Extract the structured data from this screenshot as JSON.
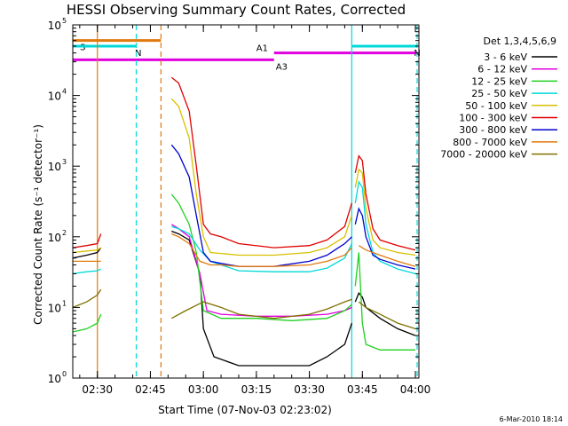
{
  "chart_data": {
    "type": "line",
    "title": "HESSI Observing Summary Count Rates, Corrected",
    "xlabel": "Start Time (07-Nov-03 02:23:02)",
    "ylabel": "Corrected Count Rate (s⁻¹ detector⁻¹)",
    "y_scale": "log",
    "ylim": [
      1,
      100000
    ],
    "xlim": [
      "02:23:02",
      "04:01:00"
    ],
    "x_tick_labels": [
      "02:30",
      "02:45",
      "03:00",
      "03:15",
      "03:30",
      "03:45",
      "04:00"
    ],
    "x_ticks": [
      "02:30",
      "02:45",
      "03:00",
      "03:15",
      "03:30",
      "03:45",
      "04:00"
    ],
    "y_ticks": [
      1,
      10,
      100,
      1000,
      10000,
      100000
    ],
    "y_tick_labels": [
      "10",
      "10",
      "10",
      "10",
      "10",
      "10"
    ],
    "y_tick_exponents": [
      "0",
      "1",
      "2",
      "3",
      "4",
      "5"
    ],
    "legend_title": "Det 1,3,4,5,6,9",
    "legend_placement": "right",
    "timestamp": "6-Mar-2010 18:14",
    "flags": [
      {
        "label": "S",
        "start": "02:23:02",
        "end": "02:48:00",
        "level": 60000,
        "color": "#e07a0e"
      },
      {
        "label": "N",
        "start": "02:23:02",
        "end": "02:41:00",
        "level": 50000,
        "color": "#00d8d8"
      },
      {
        "label": "N",
        "start": "03:42:00",
        "end": "04:00:30",
        "level": 50000,
        "color": "#00d8d8"
      },
      {
        "label": "A1",
        "start": "03:20:00",
        "end": "04:00:30",
        "level": 40000,
        "color": "#e000e0"
      },
      {
        "label": "A3",
        "start": "02:23:02",
        "end": "03:20:00",
        "level": 32000,
        "color": "#e000e0"
      }
    ],
    "vlines": [
      {
        "t": "02:30:00",
        "color": "#e07a0e",
        "style": "solid"
      },
      {
        "t": "02:41:00",
        "color": "#00d8d8",
        "style": "dashed"
      },
      {
        "t": "02:48:00",
        "color": "#e07a0e",
        "style": "dashed"
      },
      {
        "t": "03:42:00",
        "color": "#00d8d8",
        "style": "solid"
      },
      {
        "t": "04:00:30",
        "color": "#00d8d8",
        "style": "dashed"
      }
    ],
    "segments": [
      [
        "02:23:02",
        "02:31:00"
      ],
      [
        "02:51:00",
        "03:41:30"
      ],
      [
        "03:42:30",
        "04:00:30"
      ]
    ],
    "series": [
      {
        "name": "3 - 6 keV",
        "color": "#000000",
        "x": [
          "02:23",
          "02:27",
          "02:30",
          "02:31",
          "02:51",
          "02:53",
          "02:56",
          "02:59",
          "03:00",
          "03:03",
          "03:10",
          "03:20",
          "03:30",
          "03:35",
          "03:40",
          "03:42",
          "03:43",
          "03:44",
          "03:45",
          "03:46",
          "03:50",
          "03:55",
          "04:00"
        ],
        "y": [
          50,
          55,
          60,
          70,
          120,
          110,
          90,
          30,
          5,
          2,
          1.5,
          1.5,
          1.5,
          2,
          3,
          6,
          12,
          16,
          14,
          10,
          7,
          5,
          4
        ]
      },
      {
        "name": "6 - 12 keV",
        "color": "#e000e0",
        "x": [
          "02:51",
          "02:53",
          "02:56",
          "02:59",
          "03:01",
          "03:05",
          "03:15",
          "03:25",
          "03:35",
          "03:40",
          "03:42"
        ],
        "y": [
          150,
          130,
          100,
          30,
          9,
          8,
          7.5,
          7.5,
          8,
          9,
          10
        ]
      },
      {
        "name": "12 - 25 keV",
        "color": "#20d020",
        "x": [
          "02:23",
          "02:27",
          "02:30",
          "02:31",
          "02:51",
          "02:53",
          "02:56",
          "02:58",
          "03:00",
          "03:05",
          "03:15",
          "03:25",
          "03:35",
          "03:40",
          "03:42",
          "03:43",
          "03:44",
          "03:45",
          "03:46",
          "03:50",
          "03:55",
          "04:00"
        ],
        "y": [
          4.5,
          5,
          6,
          8,
          400,
          300,
          150,
          60,
          9,
          7,
          7,
          6.5,
          7,
          9,
          11,
          20,
          60,
          6,
          3,
          2.5,
          2.5,
          2.5
        ]
      },
      {
        "name": "25 - 50 keV",
        "color": "#00d8d8",
        "x": [
          "02:23",
          "02:27",
          "02:30",
          "02:31",
          "02:51",
          "02:53",
          "02:56",
          "02:59",
          "03:02",
          "03:05",
          "03:10",
          "03:20",
          "03:30",
          "03:35",
          "03:40",
          "03:42",
          "03:43",
          "03:44",
          "03:45",
          "03:46",
          "03:48",
          "03:50",
          "03:55",
          "04:00"
        ],
        "y": [
          30,
          32,
          33,
          35,
          140,
          130,
          110,
          65,
          45,
          40,
          33,
          32,
          32,
          36,
          50,
          80,
          300,
          600,
          500,
          150,
          60,
          45,
          35,
          30
        ]
      },
      {
        "name": "50 - 100 keV",
        "color": "#d8c000",
        "x": [
          "02:23",
          "02:27",
          "02:30",
          "02:31",
          "02:51",
          "02:53",
          "02:56",
          "02:58",
          "03:00",
          "03:02",
          "03:05",
          "03:10",
          "03:20",
          "03:30",
          "03:35",
          "03:40",
          "03:42",
          "03:43",
          "03:44",
          "03:45",
          "03:46",
          "03:48",
          "03:50",
          "03:55",
          "04:00"
        ],
        "y": [
          60,
          63,
          65,
          70,
          9000,
          7000,
          2500,
          400,
          100,
          60,
          58,
          55,
          55,
          60,
          70,
          100,
          200,
          500,
          900,
          800,
          250,
          90,
          70,
          60,
          55
        ]
      },
      {
        "name": "100 - 300 keV",
        "color": "#e00000",
        "x": [
          "02:23",
          "02:27",
          "02:30",
          "02:31",
          "02:51",
          "02:53",
          "02:56",
          "02:58",
          "03:00",
          "03:02",
          "03:05",
          "03:10",
          "03:20",
          "03:30",
          "03:35",
          "03:40",
          "03:42",
          "03:43",
          "03:44",
          "03:45",
          "03:46",
          "03:48",
          "03:50",
          "03:55",
          "04:00"
        ],
        "y": [
          70,
          75,
          80,
          110,
          18000,
          15000,
          6000,
          1000,
          150,
          110,
          100,
          80,
          70,
          75,
          90,
          140,
          300,
          800,
          1400,
          1200,
          400,
          130,
          90,
          75,
          65
        ]
      },
      {
        "name": "300 - 800 keV",
        "color": "#0000d0",
        "x": [
          "02:51",
          "02:53",
          "02:56",
          "02:58",
          "03:00",
          "03:02",
          "03:05",
          "03:10",
          "03:20",
          "03:30",
          "03:35",
          "03:40",
          "03:42",
          "03:43",
          "03:44",
          "03:45",
          "03:46",
          "03:48",
          "03:50",
          "03:55",
          "04:00"
        ],
        "y": [
          2000,
          1500,
          700,
          200,
          60,
          45,
          42,
          38,
          38,
          45,
          55,
          80,
          100,
          150,
          250,
          200,
          100,
          55,
          48,
          40,
          35
        ]
      },
      {
        "name": "800 - 7000 keV",
        "color": "#e07a0e",
        "x": [
          "02:23",
          "02:27",
          "02:30",
          "02:31",
          "02:51",
          "02:53",
          "02:56",
          "02:59",
          "03:02",
          "03:05",
          "03:10",
          "03:20",
          "03:30",
          "03:35",
          "03:40",
          "03:42",
          "03:44",
          "03:46",
          "03:50",
          "03:55",
          "04:00"
        ],
        "y": [
          45,
          45,
          45,
          45,
          110,
          100,
          80,
          45,
          40,
          40,
          38,
          38,
          40,
          45,
          55,
          70,
          75,
          65,
          55,
          45,
          38
        ]
      },
      {
        "name": "7000 - 20000 keV",
        "color": "#807000",
        "x": [
          "02:23",
          "02:27",
          "02:30",
          "02:31",
          "02:51",
          "02:55",
          "03:00",
          "03:05",
          "03:10",
          "03:20",
          "03:30",
          "03:35",
          "03:40",
          "03:42",
          "03:44",
          "03:46",
          "03:50",
          "03:55",
          "04:00"
        ],
        "y": [
          10,
          12,
          15,
          18,
          7,
          9,
          12,
          10,
          8,
          7,
          8,
          9.5,
          12,
          13,
          12,
          10,
          8,
          6,
          5
        ]
      }
    ]
  }
}
